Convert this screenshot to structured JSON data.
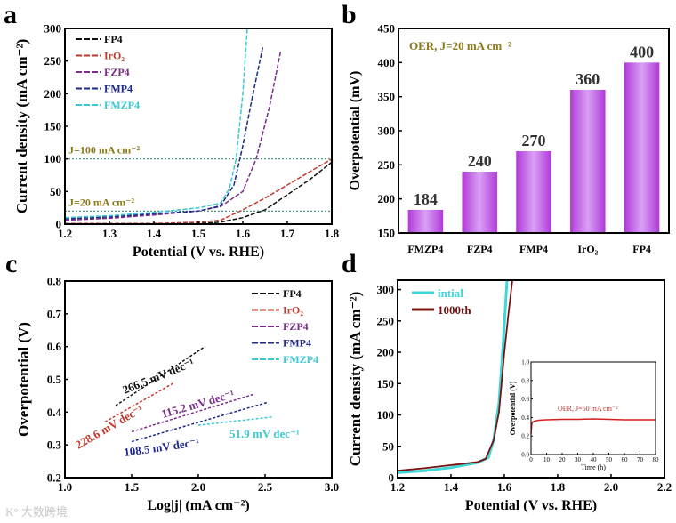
{
  "watermark": "大数跨境",
  "chart_data": [
    {
      "panel": "a",
      "type": "line",
      "xlabel": "Potential (V vs. RHE)",
      "ylabel": "Current density (mA cm⁻²)",
      "xlim": [
        1.2,
        1.8
      ],
      "ylim": [
        0,
        300
      ],
      "xticks": [
        "1.2",
        "1.3",
        "1.4",
        "1.5",
        "1.6",
        "1.7",
        "1.8"
      ],
      "yticks": [
        "0",
        "50",
        "100",
        "150",
        "200",
        "250",
        "300"
      ],
      "legend": "top-left",
      "reference_lines": [
        {
          "y": 100,
          "label": "J=100 mA cm⁻²",
          "color": "#3a8a6e"
        },
        {
          "y": 20,
          "label": "J=20 mA cm⁻²",
          "color": "#3a8a6e"
        }
      ],
      "series": [
        {
          "name": "FP4",
          "color": "#111111",
          "x": [
            1.2,
            1.4,
            1.5,
            1.55,
            1.6,
            1.65,
            1.7,
            1.75,
            1.8
          ],
          "y": [
            0,
            0,
            1,
            3,
            10,
            22,
            45,
            68,
            95
          ]
        },
        {
          "name": "IrO₂",
          "color": "#c0392b",
          "x": [
            1.2,
            1.4,
            1.5,
            1.55,
            1.6,
            1.65,
            1.7,
            1.75,
            1.8
          ],
          "y": [
            1,
            1,
            3,
            6,
            22,
            40,
            60,
            80,
            100
          ]
        },
        {
          "name": "FZP4",
          "color": "#7b2d8b",
          "x": [
            1.2,
            1.3,
            1.4,
            1.5,
            1.55,
            1.6,
            1.63,
            1.66,
            1.685
          ],
          "y": [
            6,
            9,
            14,
            20,
            27,
            50,
            100,
            180,
            265
          ]
        },
        {
          "name": "FMP4",
          "color": "#1f2a8c",
          "x": [
            1.2,
            1.3,
            1.4,
            1.5,
            1.55,
            1.58,
            1.6,
            1.62,
            1.645
          ],
          "y": [
            8,
            11,
            16,
            20,
            28,
            60,
            120,
            190,
            272
          ]
        },
        {
          "name": "FMZP4",
          "color": "#3cc8d0",
          "x": [
            1.2,
            1.3,
            1.4,
            1.5,
            1.55,
            1.57,
            1.585,
            1.6,
            1.61
          ],
          "y": [
            10,
            13,
            18,
            25,
            32,
            55,
            100,
            200,
            300
          ]
        }
      ]
    },
    {
      "panel": "b",
      "type": "bar",
      "annotation": "OER, J=20 mA cm⁻²",
      "ylabel": "Overpotential (mV)",
      "ylim": [
        150,
        450
      ],
      "yticks": [
        "150",
        "200",
        "250",
        "300",
        "350",
        "400",
        "450"
      ],
      "categories": [
        "FMZP4",
        "FZP4",
        "FMP4",
        "IrO₂",
        "FP4"
      ],
      "values": [
        184,
        240,
        270,
        360,
        400
      ],
      "data_labels": [
        "184",
        "240",
        "270",
        "360",
        "400"
      ],
      "color": "#c066e8"
    },
    {
      "panel": "c",
      "type": "line",
      "xlabel": "Log|j| (mA cm⁻²)",
      "ylabel": "Overpotential (V)",
      "xlim": [
        1.0,
        3.0
      ],
      "ylim": [
        0.2,
        0.8
      ],
      "xticks": [
        "1.0",
        "1.5",
        "2.0",
        "2.5",
        "3.0"
      ],
      "yticks": [
        "0.2",
        "0.3",
        "0.4",
        "0.5",
        "0.6",
        "0.7",
        "0.8"
      ],
      "legend": "top-right",
      "series": [
        {
          "name": "FP4",
          "color": "#111111",
          "x": [
            1.38,
            2.05
          ],
          "y": [
            0.42,
            0.6
          ],
          "slope_label": "266.5 mV dec⁻¹"
        },
        {
          "name": "IrO₂",
          "color": "#c0392b",
          "x": [
            1.3,
            1.82
          ],
          "y": [
            0.37,
            0.49
          ],
          "slope_label": "228.6 mV dec⁻¹"
        },
        {
          "name": "FZP4",
          "color": "#7b2d8b",
          "x": [
            1.5,
            2.42
          ],
          "y": [
            0.34,
            0.455
          ],
          "slope_label": "115.2 mV dec⁻¹"
        },
        {
          "name": "FMP4",
          "color": "#1f2a8c",
          "x": [
            1.5,
            2.52
          ],
          "y": [
            0.31,
            0.43
          ],
          "slope_label": "108.5 mV dec⁻¹"
        },
        {
          "name": "FMZP4",
          "color": "#3cc8d0",
          "x": [
            2.0,
            2.55
          ],
          "y": [
            0.36,
            0.385
          ],
          "slope_label": "51.9 mV dec⁻¹"
        }
      ]
    },
    {
      "panel": "d",
      "type": "line",
      "xlabel": "Potential (V vs. RHE)",
      "ylabel": "Current density (mA cm⁻²)",
      "xlim": [
        1.2,
        2.2
      ],
      "ylim": [
        0,
        315
      ],
      "xticks": [
        "1.2",
        "1.4",
        "1.6",
        "1.8",
        "2.0",
        "2.2"
      ],
      "yticks": [
        "0",
        "50",
        "100",
        "150",
        "200",
        "250",
        "300"
      ],
      "legend": "top-left",
      "series": [
        {
          "name": "intial",
          "color": "#3fd6d6",
          "x": [
            1.2,
            1.3,
            1.4,
            1.5,
            1.54,
            1.56,
            1.58,
            1.595,
            1.61
          ],
          "y": [
            8,
            11,
            16,
            24,
            32,
            60,
            120,
            210,
            315
          ]
        },
        {
          "name": "1000th",
          "color": "#7a1010",
          "x": [
            1.2,
            1.3,
            1.4,
            1.5,
            1.53,
            1.56,
            1.58,
            1.6,
            1.615,
            1.63
          ],
          "y": [
            11,
            15,
            20,
            25,
            30,
            60,
            105,
            200,
            260,
            315
          ]
        }
      ],
      "inset": {
        "type": "line",
        "annotation": "OER, J=50 mA cm⁻²",
        "xlabel": "Time (h)",
        "ylabel": "Overpotential (V)",
        "xlim": [
          0,
          80
        ],
        "ylim": [
          0,
          1.0
        ],
        "xticks": [
          "0",
          "10",
          "20",
          "30",
          "40",
          "50",
          "60",
          "70",
          "80"
        ],
        "yticks": [
          "0.0",
          "0.2",
          "0.4",
          "0.6",
          "0.8",
          "1.0"
        ],
        "color": "#d42020",
        "x": [
          0,
          0.5,
          1,
          2,
          5,
          10,
          20,
          30,
          40,
          50,
          60,
          70,
          80
        ],
        "y": [
          0.22,
          0.33,
          0.35,
          0.36,
          0.37,
          0.375,
          0.38,
          0.38,
          0.385,
          0.38,
          0.375,
          0.375,
          0.375
        ]
      }
    }
  ]
}
